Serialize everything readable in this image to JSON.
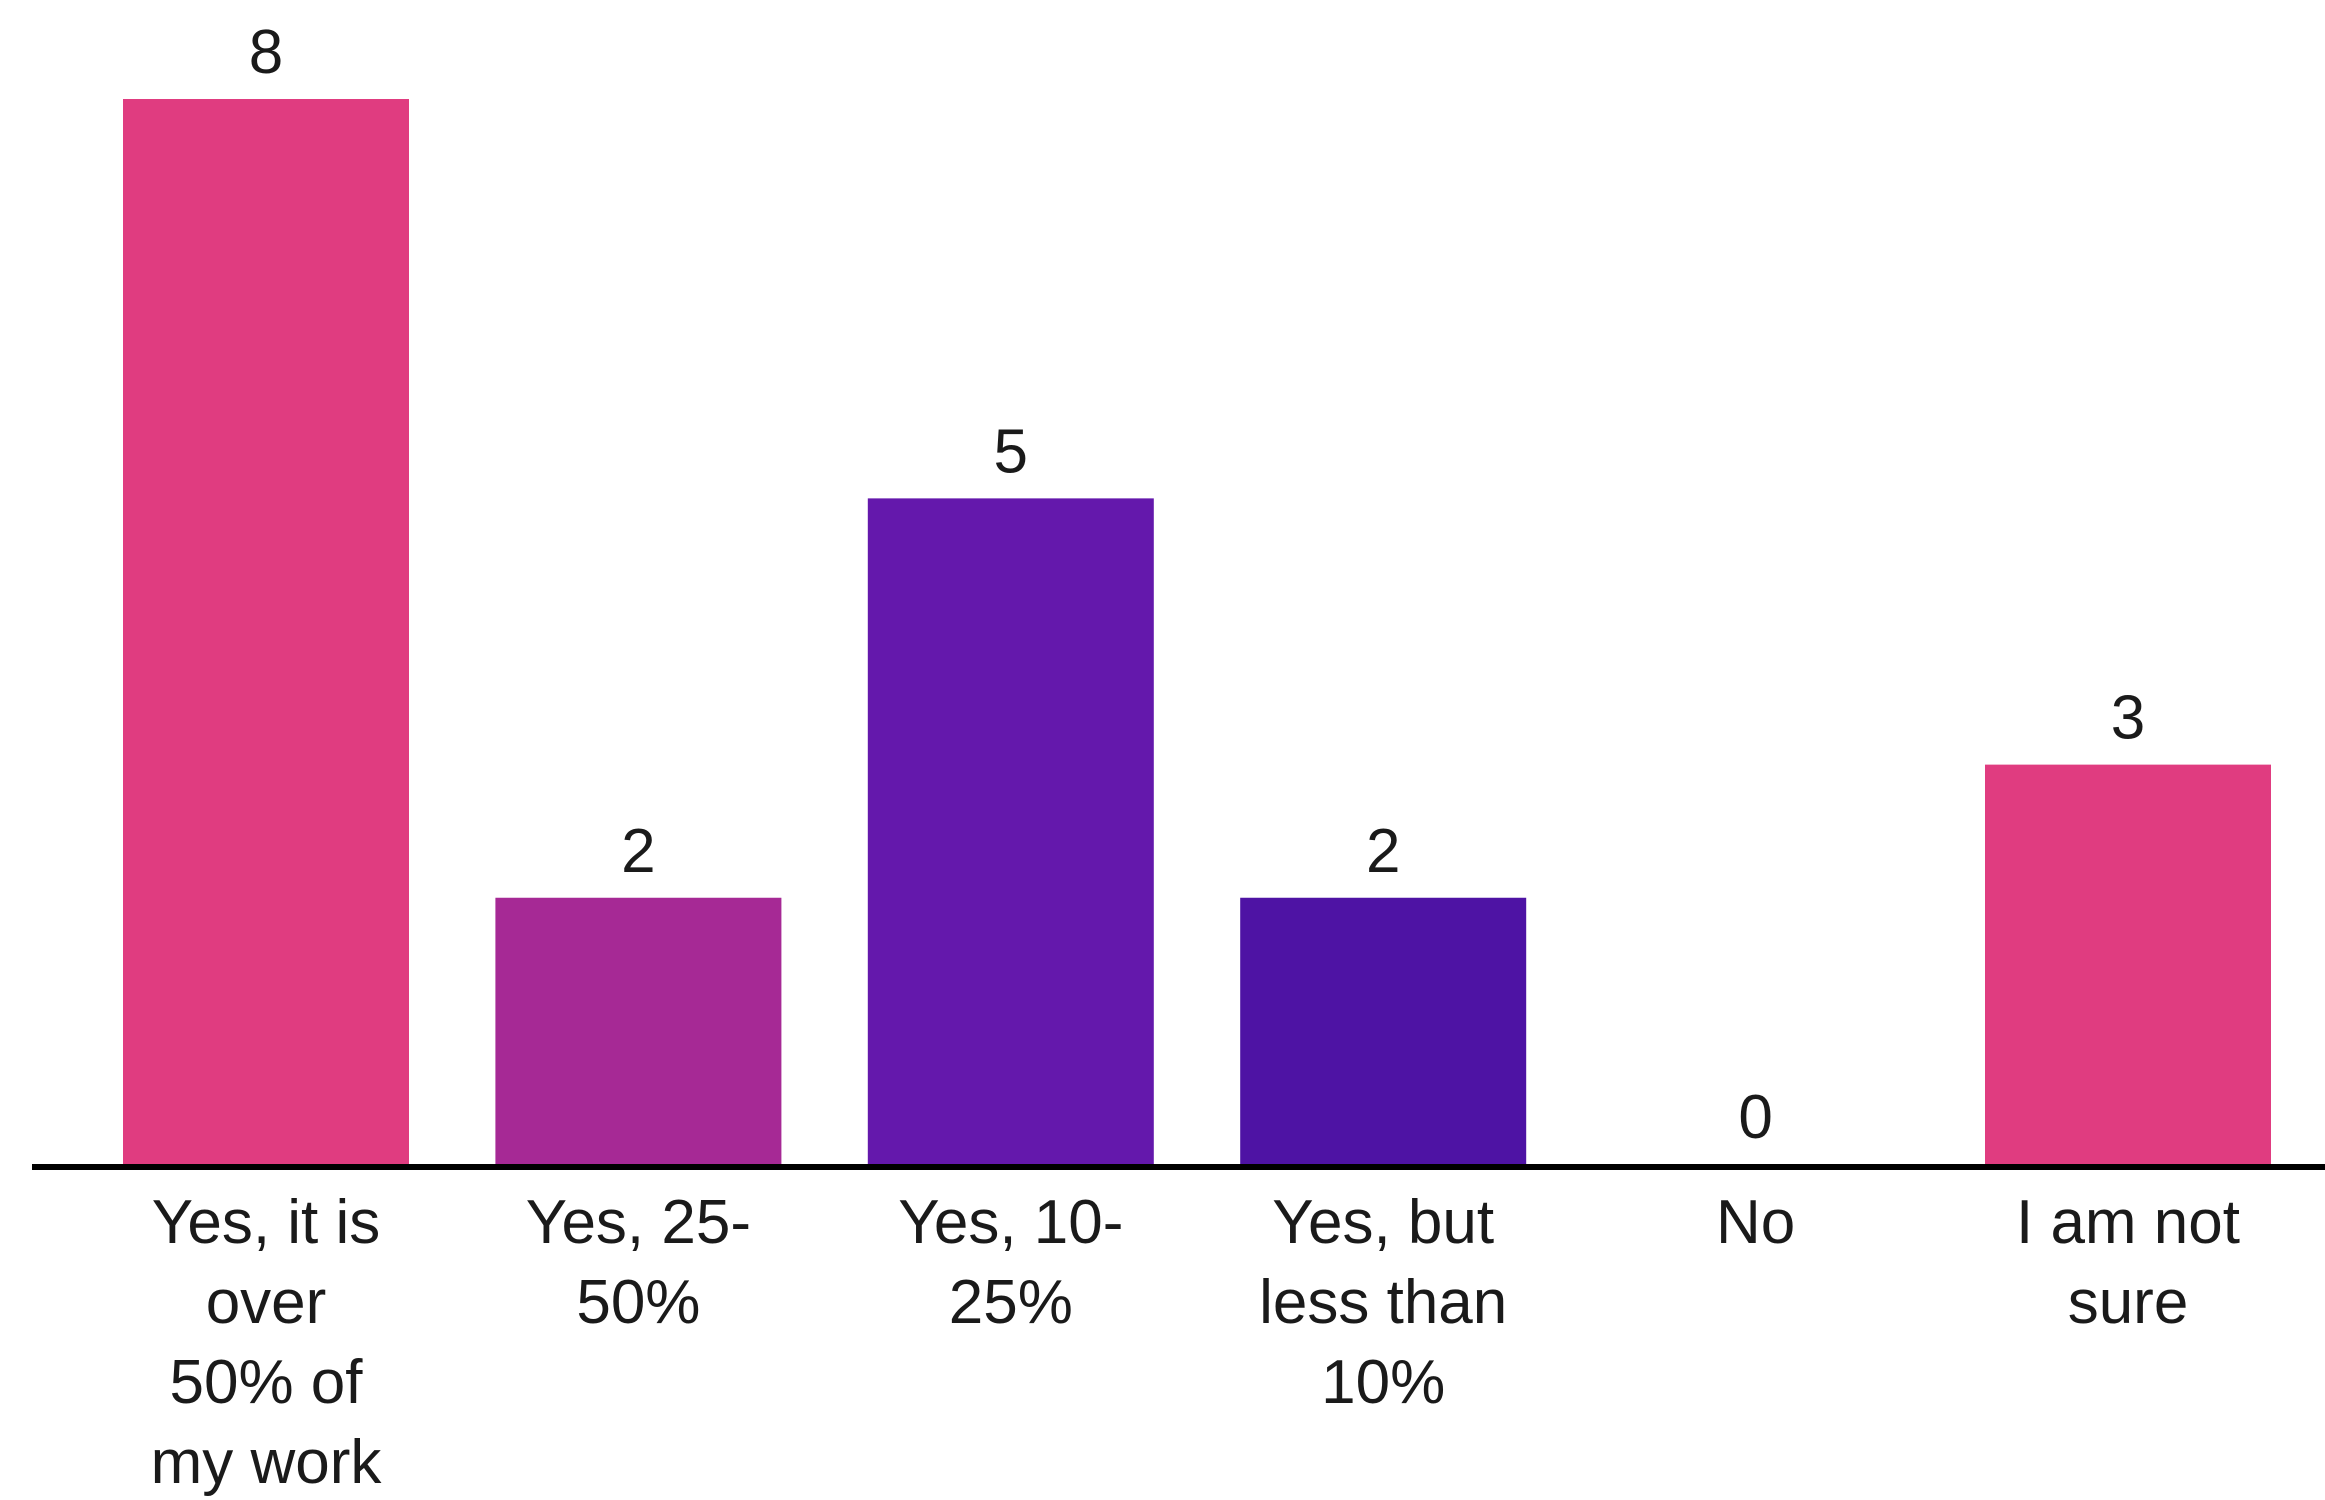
{
  "chart_data": {
    "type": "bar",
    "categories": [
      [
        "Yes, it is",
        "over",
        "50% of",
        "my work"
      ],
      [
        "Yes, 25-",
        "50%"
      ],
      [
        "Yes, 10-",
        "25%"
      ],
      [
        "Yes, but",
        "less than",
        "10%"
      ],
      [
        "No"
      ],
      [
        "I am not",
        "sure"
      ]
    ],
    "values": [
      8,
      2,
      5,
      2,
      0,
      3
    ],
    "value_labels": [
      "8",
      "2",
      "5",
      "2",
      "0",
      "3"
    ],
    "colors": [
      "#e03c80",
      "#a62995",
      "#6418ac",
      "#4e13a4",
      "#e03c80",
      "#e03c80"
    ],
    "axis_color": "#000000",
    "ylim": [
      0,
      8
    ],
    "grid": false,
    "legend": "none",
    "title": "",
    "xlabel": "",
    "ylabel": ""
  }
}
